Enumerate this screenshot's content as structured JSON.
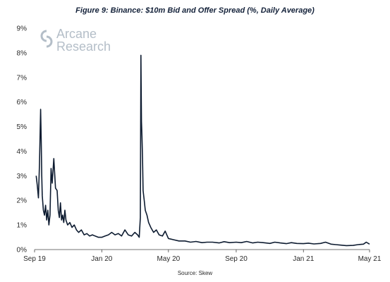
{
  "chart_data": {
    "type": "line",
    "title": "Figure 9: Binance: $10m Bid and Offer Spread (%, Daily Average)",
    "source": "Source: Skew",
    "logo": {
      "line1": "Arcane",
      "line2": "Research",
      "color": "#b4bec8"
    },
    "xlabel": "",
    "ylabel": "",
    "ylim": [
      0,
      9
    ],
    "yticks": [
      "0%",
      "1%",
      "2%",
      "3%",
      "4%",
      "5%",
      "6%",
      "7%",
      "8%",
      "9%"
    ],
    "xlim": [
      "2019-09-01",
      "2021-05-01"
    ],
    "xticks": [
      {
        "date": "2019-09-01",
        "label": "Sep 19"
      },
      {
        "date": "2020-01-01",
        "label": "Jan 20"
      },
      {
        "date": "2020-05-01",
        "label": "May 20"
      },
      {
        "date": "2020-09-01",
        "label": "Sep 20"
      },
      {
        "date": "2021-01-01",
        "label": "Jan 21"
      },
      {
        "date": "2021-05-01",
        "label": "May 21"
      }
    ],
    "grid": false,
    "line_color": "#0d1b30",
    "series": [
      {
        "x": [
          "2019-09-04",
          "2019-09-06",
          "2019-09-08",
          "2019-09-10",
          "2019-09-12",
          "2019-09-13",
          "2019-09-14",
          "2019-09-15",
          "2019-09-17",
          "2019-09-19",
          "2019-09-21",
          "2019-09-23",
          "2019-09-25",
          "2019-09-27",
          "2019-09-29",
          "2019-10-01",
          "2019-10-03",
          "2019-10-06",
          "2019-10-09",
          "2019-10-12",
          "2019-10-14",
          "2019-10-16",
          "2019-10-18",
          "2019-10-20",
          "2019-10-22",
          "2019-10-24",
          "2019-10-26",
          "2019-10-28",
          "2019-10-31",
          "2019-11-04",
          "2019-11-08",
          "2019-11-12",
          "2019-11-16",
          "2019-11-20",
          "2019-11-25",
          "2019-11-30",
          "2019-12-05",
          "2019-12-10",
          "2019-12-15",
          "2019-12-20",
          "2019-12-26",
          "2020-01-01",
          "2020-01-07",
          "2020-01-13",
          "2020-01-19",
          "2020-01-25",
          "2020-01-31",
          "2020-02-06",
          "2020-02-12",
          "2020-02-18",
          "2020-02-24",
          "2020-03-01",
          "2020-03-06",
          "2020-03-09",
          "2020-03-11",
          "2020-03-12",
          "2020-03-13",
          "2020-03-14",
          "2020-03-15",
          "2020-03-16",
          "2020-03-18",
          "2020-03-20",
          "2020-03-23",
          "2020-03-26",
          "2020-03-30",
          "2020-04-04",
          "2020-04-09",
          "2020-04-14",
          "2020-04-20",
          "2020-04-25",
          "2020-05-01",
          "2020-05-10",
          "2020-05-20",
          "2020-05-31",
          "2020-06-10",
          "2020-06-20",
          "2020-07-01",
          "2020-07-10",
          "2020-07-20",
          "2020-08-01",
          "2020-08-10",
          "2020-08-20",
          "2020-09-01",
          "2020-09-10",
          "2020-09-20",
          "2020-10-01",
          "2020-10-10",
          "2020-10-20",
          "2020-11-01",
          "2020-11-10",
          "2020-11-20",
          "2020-12-01",
          "2020-12-10",
          "2020-12-20",
          "2021-01-01",
          "2021-01-10",
          "2021-01-20",
          "2021-02-01",
          "2021-02-10",
          "2021-02-20",
          "2021-03-01",
          "2021-03-10",
          "2021-03-20",
          "2021-04-01",
          "2021-04-10",
          "2021-04-20",
          "2021-04-25",
          "2021-05-01"
        ],
        "y": [
          3.0,
          2.6,
          2.1,
          3.5,
          5.7,
          4.5,
          3.0,
          2.2,
          1.6,
          1.4,
          1.8,
          1.2,
          1.6,
          1.0,
          1.4,
          3.3,
          2.7,
          3.7,
          2.5,
          2.4,
          1.6,
          1.3,
          1.9,
          1.2,
          1.4,
          1.1,
          1.6,
          1.2,
          1.0,
          1.1,
          0.9,
          1.0,
          0.8,
          0.7,
          0.8,
          0.6,
          0.65,
          0.55,
          0.6,
          0.55,
          0.5,
          0.5,
          0.55,
          0.6,
          0.7,
          0.6,
          0.65,
          0.55,
          0.8,
          0.6,
          0.55,
          0.7,
          0.6,
          0.5,
          1.3,
          7.9,
          5.2,
          4.6,
          3.7,
          2.4,
          2.0,
          1.6,
          1.4,
          1.1,
          0.9,
          0.7,
          0.8,
          0.6,
          0.55,
          0.75,
          0.45,
          0.4,
          0.35,
          0.35,
          0.3,
          0.33,
          0.28,
          0.3,
          0.3,
          0.27,
          0.32,
          0.28,
          0.3,
          0.28,
          0.33,
          0.27,
          0.3,
          0.28,
          0.25,
          0.3,
          0.27,
          0.24,
          0.28,
          0.25,
          0.24,
          0.26,
          0.23,
          0.25,
          0.3,
          0.22,
          0.2,
          0.18,
          0.16,
          0.17,
          0.2,
          0.22,
          0.3,
          0.22
        ]
      }
    ]
  }
}
